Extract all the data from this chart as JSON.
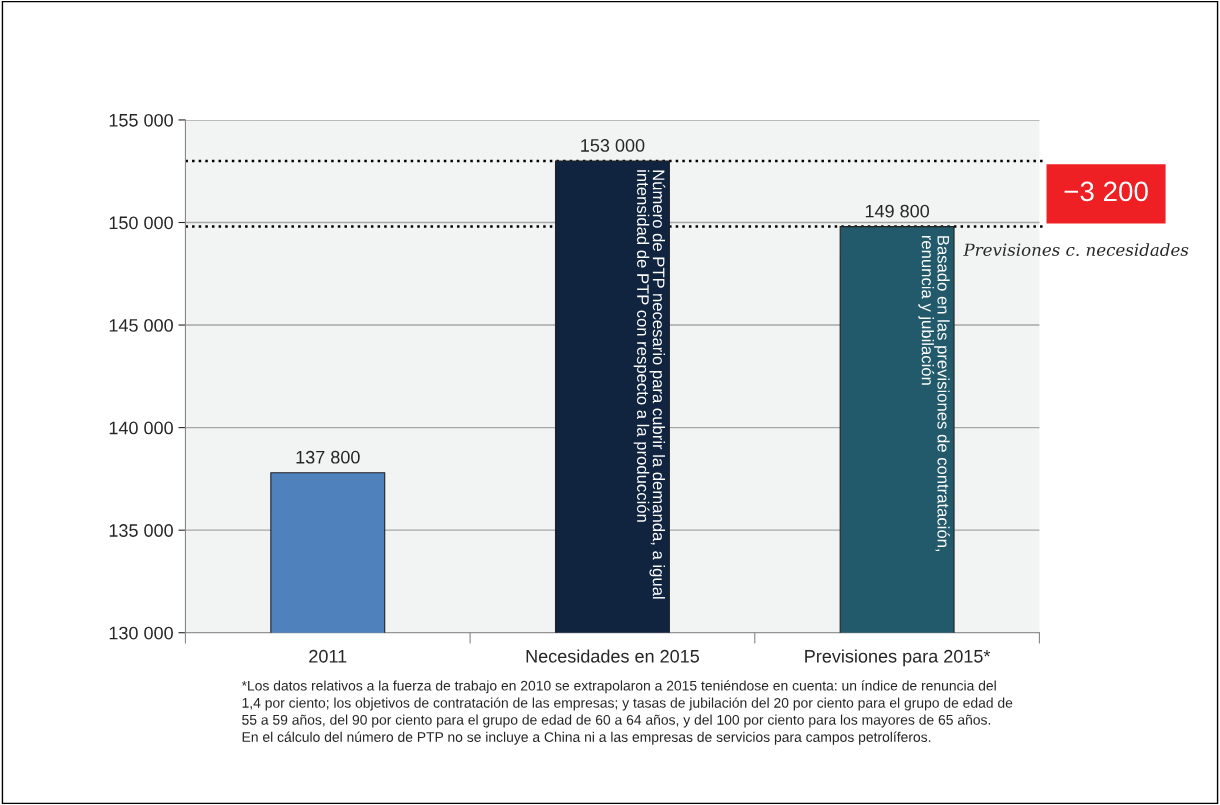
{
  "chart_data": {
    "type": "bar",
    "categories": [
      "2011",
      "Necesidades en 2015",
      "Previsiones para 2015*"
    ],
    "values": [
      137800,
      153000,
      149800
    ],
    "colors": [
      "#4f81bd",
      "#10233f",
      "#235a6b"
    ],
    "value_labels": [
      "137 800",
      "153 000",
      "149 800"
    ],
    "ylim": [
      130000,
      155000
    ],
    "yticks": [
      {
        "value": 130000,
        "label": "130 000"
      },
      {
        "value": 135000,
        "label": "135 000"
      },
      {
        "value": 140000,
        "label": "140 000"
      },
      {
        "value": 145000,
        "label": "145 000"
      },
      {
        "value": 150000,
        "label": "150 000"
      },
      {
        "value": 155000,
        "label": "155 000"
      }
    ],
    "grid": "y",
    "ref_lines": [
      {
        "axis": "y",
        "value": 153000,
        "line_style": "dotted",
        "color": "#000000"
      },
      {
        "axis": "y",
        "value": 149800,
        "line_style": "dotted",
        "color": "#000000"
      }
    ],
    "annotations": [
      {
        "text": "Número de PTP necesario para cubrir la demanda, a igual\nintensidad de PTP con respecto a la producción",
        "x": "Necesidades en 2015",
        "y": 153000
      },
      {
        "text": "Basado en las previsiones de contratación,\nrenuncia y jubilación",
        "x": "Previsiones para 2015*",
        "y": 149800
      },
      "−3 200",
      "Previsiones c. necesidades",
      "*Los datos relativos a la fuerza de trabajo en 2010 se extrapolaron a 2015 teniéndose en cuenta: un índice de renuncia del\n1,4 por ciento; los objetivos de contratación de las empresas; y tasas de jubilación del 20 por ciento para el grupo de edad de\n55 a 59 años, del 90 por ciento para el grupo de edad de 60 a 64 años, y del 100 por ciento para los mayores de 65 años.\nEn el cálculo del número de PTP no se incluye a China ni a las empresas de servicios para campos petrolíferos."
    ]
  }
}
